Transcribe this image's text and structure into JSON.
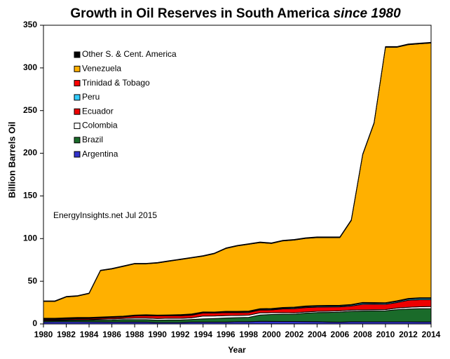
{
  "chart_data": {
    "type": "stacked-area",
    "title": "Growth in Oil Reserves in South America",
    "title_suffix": "since 1980",
    "x_label": "Year",
    "y_label": "Billion Barrels Oil",
    "annotation": "EnergyInsights.net Jul 2015",
    "x": [
      1980,
      1981,
      1982,
      1983,
      1984,
      1985,
      1986,
      1987,
      1988,
      1989,
      1990,
      1991,
      1992,
      1993,
      1994,
      1995,
      1996,
      1997,
      1998,
      1999,
      2000,
      2001,
      2002,
      2003,
      2004,
      2005,
      2006,
      2007,
      2008,
      2009,
      2010,
      2011,
      2012,
      2013,
      2014
    ],
    "xlim": [
      1980,
      2014
    ],
    "xticks": [
      1980,
      1982,
      1984,
      1986,
      1988,
      1990,
      1992,
      1994,
      1996,
      1998,
      2000,
      2002,
      2004,
      2006,
      2008,
      2010,
      2012,
      2014
    ],
    "ylim": [
      0,
      350
    ],
    "yticks": [
      0,
      50,
      100,
      150,
      200,
      250,
      300,
      350
    ],
    "grid": false,
    "series": [
      {
        "name": "Other S. & Cent. America",
        "color": "#000000",
        "values": [
          0.6,
          0.6,
          0.6,
          0.6,
          0.6,
          0.6,
          0.6,
          0.6,
          0.6,
          0.6,
          0.6,
          0.6,
          0.6,
          0.6,
          0.6,
          0.6,
          0.6,
          0.6,
          0.7,
          0.7,
          0.7,
          0.7,
          0.7,
          0.8,
          0.8,
          0.8,
          0.8,
          0.8,
          0.8,
          0.8,
          0.8,
          0.8,
          0.8,
          0.8,
          0.8
        ]
      },
      {
        "name": "Venezuela",
        "color": "#ffb000",
        "values": [
          19.6,
          19.7,
          24.4,
          25,
          28,
          54.3,
          55.8,
          58.3,
          60,
          59.6,
          61,
          62.8,
          64.5,
          65.7,
          65.3,
          68.4,
          73.6,
          76.6,
          78.2,
          77.4,
          76.2,
          78,
          78.6,
          79.1,
          79.6,
          79.4,
          79.3,
          98.4,
          173,
          210.1,
          299.3,
          297.1,
          297.3,
          297.5,
          298.5
        ]
      },
      {
        "name": "Trinidad & Tobago",
        "color": "#ff0000",
        "values": [
          0.7,
          0.6,
          0.6,
          0.6,
          0.6,
          0.6,
          0.5,
          0.5,
          0.6,
          0.6,
          0.6,
          0.5,
          0.5,
          0.6,
          0.5,
          0.5,
          0.6,
          0.7,
          0.8,
          0.7,
          0.8,
          0.7,
          0.7,
          1.0,
          0.8,
          0.8,
          0.8,
          0.7,
          0.8,
          0.8,
          0.7,
          0.8,
          0.8,
          0.8,
          0.8
        ]
      },
      {
        "name": "Peru",
        "color": "#33ccff",
        "values": [
          0.7,
          0.7,
          0.8,
          0.7,
          0.6,
          0.6,
          0.6,
          0.5,
          0.5,
          0.5,
          0.4,
          0.4,
          0.8,
          0.8,
          0.8,
          0.8,
          0.8,
          0.9,
          0.9,
          0.9,
          0.9,
          0.9,
          1.0,
          0.9,
          1.1,
          1.1,
          1.1,
          1.1,
          1.4,
          1.1,
          1.2,
          1.2,
          1.4,
          1.6,
          1.5
        ]
      },
      {
        "name": "Ecuador",
        "color": "#ee0000",
        "values": [
          1.1,
          1.0,
          1.2,
          1.4,
          1.4,
          1.4,
          1.6,
          1.6,
          2.4,
          2.8,
          3.0,
          3.0,
          3.0,
          3.1,
          3.6,
          3.4,
          3.6,
          3.2,
          3.1,
          3.3,
          3.3,
          4.5,
          5.0,
          5.1,
          4.9,
          4.9,
          4.6,
          4.7,
          6.5,
          6.5,
          6.2,
          6.5,
          8.2,
          8.2,
          8.0
        ]
      },
      {
        "name": "Colombia",
        "color": "#ffffff",
        "values": [
          0.6,
          0.6,
          0.6,
          0.6,
          0.6,
          1.1,
          1.4,
          1.5,
          1.9,
          1.9,
          2.0,
          2.1,
          2.0,
          2.0,
          3.2,
          2.9,
          2.8,
          2.6,
          2.6,
          2.5,
          2.0,
          1.8,
          1.6,
          1.5,
          1.5,
          1.5,
          1.5,
          1.5,
          1.4,
          1.4,
          1.4,
          1.9,
          2.0,
          2.2,
          2.4
        ]
      },
      {
        "name": "Brazil",
        "color": "#1a6b2a",
        "values": [
          1.3,
          1.3,
          1.5,
          1.8,
          2.0,
          2.1,
          2.3,
          2.8,
          2.7,
          2.8,
          2.8,
          3.0,
          3.0,
          3.0,
          3.8,
          4.2,
          4.8,
          4.8,
          5.1,
          7.4,
          8.1,
          8.5,
          8.5,
          9.8,
          10.6,
          11.2,
          11.8,
          12.2,
          12.6,
          12.8,
          12.9,
          14.2,
          15.0,
          15.5,
          15.6
        ]
      },
      {
        "name": "Argentina",
        "color": "#3333cc",
        "values": [
          2.4,
          2.5,
          2.5,
          2.5,
          2.4,
          2.3,
          2.2,
          2.2,
          2.3,
          2.2,
          1.6,
          1.6,
          1.6,
          2.2,
          2.2,
          2.2,
          2.2,
          2.6,
          2.6,
          3.1,
          3.0,
          2.9,
          2.9,
          2.8,
          2.7,
          2.3,
          2.1,
          2.6,
          2.5,
          2.5,
          2.5,
          2.5,
          2.5,
          2.4,
          2.4
        ]
      }
    ]
  }
}
